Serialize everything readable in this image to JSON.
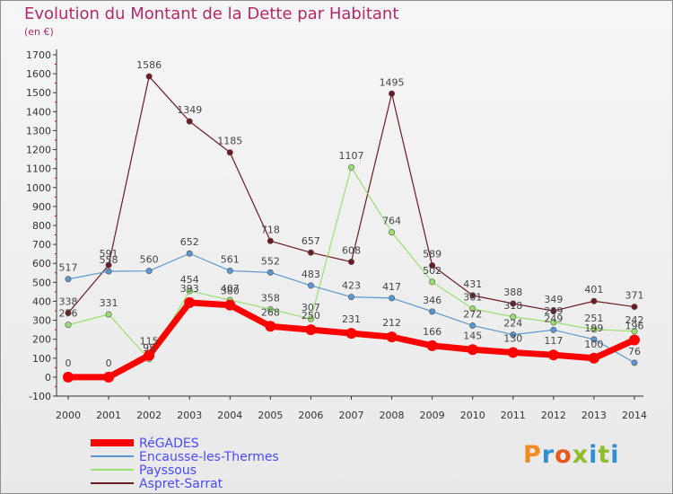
{
  "title": "Evolution du Montant de la Dette par Habitant",
  "subtitle": "(en €)",
  "logo": {
    "text": "Proxiti",
    "letter_colors": [
      "#f28a1f",
      "#2f8fd0",
      "#e8581e",
      "#8fbd2c",
      "#2f8fd0",
      "#8fbd2c",
      "#2f8fd0"
    ]
  },
  "chart_data": {
    "type": "line",
    "x": [
      "2000",
      "2001",
      "2002",
      "2003",
      "2004",
      "2005",
      "2006",
      "2007",
      "2008",
      "2009",
      "2010",
      "2011",
      "2012",
      "2013",
      "2014"
    ],
    "ylim": [
      -100,
      1700
    ],
    "yticks": [
      -100,
      0,
      100,
      200,
      300,
      400,
      500,
      600,
      700,
      800,
      900,
      1000,
      1100,
      1200,
      1300,
      1400,
      1500,
      1600,
      1700
    ],
    "grid": false,
    "legend": "bottom-left",
    "series": [
      {
        "name": "Aspret-Sarrat",
        "color": "#6e1a22",
        "values": [
          338,
          591,
          1586,
          1349,
          1185,
          718,
          657,
          608,
          1495,
          589,
          431,
          388,
          349,
          401,
          371
        ]
      },
      {
        "name": "Payssous",
        "color": "#99e06f",
        "values": [
          276,
          331,
          95,
          454,
          407,
          358,
          307,
          1107,
          764,
          502,
          361,
          318,
          289,
          251,
          242
        ]
      },
      {
        "name": "Encausse-les-Thermes",
        "color": "#5a97d0",
        "values": [
          517,
          558,
          560,
          652,
          561,
          552,
          483,
          423,
          417,
          346,
          272,
          224,
          249,
          199,
          76
        ]
      },
      {
        "name": "RéGADES",
        "color": "#ff0000",
        "values": [
          0,
          0,
          115,
          393,
          380,
          268,
          250,
          231,
          212,
          166,
          145,
          130,
          117,
          100,
          196
        ]
      }
    ]
  }
}
